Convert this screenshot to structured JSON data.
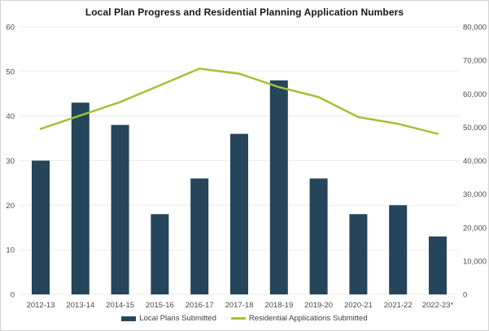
{
  "chart_data": {
    "type": "combo",
    "title": "Local Plan Progress and Residential Planning Application Numbers",
    "categories": [
      "2012-13",
      "2013-14",
      "2014-15",
      "2015-16",
      "2016-17",
      "2017-18",
      "2018-19",
      "2019-20",
      "2020-21",
      "2021-22",
      "2022-23*"
    ],
    "series": [
      {
        "name": "Local Plans Submitted",
        "type": "bar",
        "axis": "left",
        "color": "#24455A",
        "values": [
          30,
          43,
          38,
          18,
          26,
          36,
          48,
          26,
          18,
          20,
          13
        ]
      },
      {
        "name": "Residential Applications Submitted",
        "type": "line",
        "axis": "right",
        "color": "#A3C038",
        "values": [
          49500,
          53500,
          57500,
          62500,
          67500,
          66000,
          62000,
          59000,
          53000,
          51000,
          48000
        ]
      }
    ],
    "left_axis": {
      "min": 0,
      "max": 60,
      "tick_labels": [
        "0",
        "10",
        "20",
        "30",
        "40",
        "50",
        "60"
      ]
    },
    "right_axis": {
      "min": 0,
      "max": 80000,
      "tick_labels": [
        "0",
        "10,000",
        "20,000",
        "30,000",
        "40,000",
        "50,000",
        "60,000",
        "70,000",
        "80,000"
      ]
    },
    "grid": true,
    "grid_color": "#ECECEC",
    "text_color": "#4a4a4a",
    "legend_position": "bottom"
  }
}
